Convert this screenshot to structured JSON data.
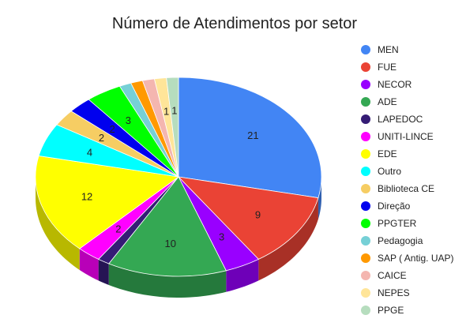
{
  "chart_data": {
    "type": "pie",
    "variant": "3d",
    "title": "Número de Atendimentos por setor",
    "legend_position": "right",
    "slices": [
      {
        "name": "MEN",
        "value": 21,
        "label": "21",
        "color": "#4285F4"
      },
      {
        "name": "FUE",
        "value": 9,
        "label": "9",
        "color": "#EA4335"
      },
      {
        "name": "NECOR",
        "value": 3,
        "label": "3",
        "color": "#9900FF"
      },
      {
        "name": "ADE",
        "value": 10,
        "label": "10",
        "color": "#34A853"
      },
      {
        "name": "LAPEDOC",
        "value": 1,
        "label": "",
        "color": "#351C75"
      },
      {
        "name": "UNITI-LINCE",
        "value": 2,
        "label": "2",
        "color": "#FF00FF"
      },
      {
        "name": "EDE",
        "value": 12,
        "label": "12",
        "color": "#FFFF00"
      },
      {
        "name": "Outro",
        "value": 4,
        "label": "4",
        "color": "#00FFFF"
      },
      {
        "name": "Biblioteca CE",
        "value": 2,
        "label": "2",
        "color": "#F6CD63"
      },
      {
        "name": "Direção",
        "value": 2,
        "label": "2",
        "color": "#0000EE"
      },
      {
        "name": "PPGTER",
        "value": 3,
        "label": "3",
        "color": "#00FF00"
      },
      {
        "name": "Pedagogia",
        "value": 1,
        "label": "",
        "color": "#76D0D6"
      },
      {
        "name": "SAP ( Antig. UAP)",
        "value": 1,
        "label": "",
        "color": "#FF9900"
      },
      {
        "name": "CAICE",
        "value": 1,
        "label": "",
        "color": "#F4B6B0"
      },
      {
        "name": "NEPES",
        "value": 1,
        "label": "1",
        "color": "#FFE599"
      },
      {
        "name": "PPGE",
        "value": 1,
        "label": "1",
        "color": "#B6DDBE"
      }
    ]
  }
}
